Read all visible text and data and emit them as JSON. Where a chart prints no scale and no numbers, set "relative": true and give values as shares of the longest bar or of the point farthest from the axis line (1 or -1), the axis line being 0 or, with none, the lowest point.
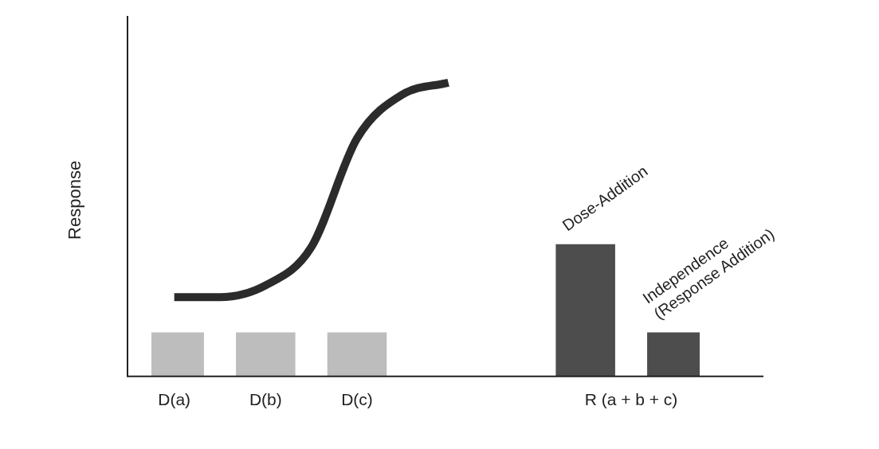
{
  "chart_data": {
    "type": "bar",
    "relative": true,
    "ylabel": "Response",
    "categories": [
      "D(a)",
      null,
      "D(b)",
      null,
      "D(c)",
      null,
      null,
      null,
      null,
      null,
      "R (a + b + c)",
      null
    ],
    "series": [
      {
        "colors": [
          "#bdbdbd",
          null,
          "#bdbdbd",
          null,
          "#bdbdbd",
          null,
          null,
          null,
          null,
          "#4d4d4d",
          null,
          "#4d4d4d"
        ],
        "values": [
          0.15,
          null,
          0.15,
          null,
          0.15,
          null,
          null,
          null,
          null,
          0.45,
          null,
          0.15
        ]
      },
      {
        "type": "line",
        "color": "#2b2b2b",
        "values": [
          0.27,
          0.27,
          0.31,
          0.44,
          0.81,
          0.96,
          1,
          null,
          null,
          null,
          null,
          null
        ]
      }
    ],
    "marker": "none",
    "legend": false,
    "grid": false,
    "annotations": [
      "Dose-Addition",
      "Independence (Response Addition)"
    ]
  }
}
